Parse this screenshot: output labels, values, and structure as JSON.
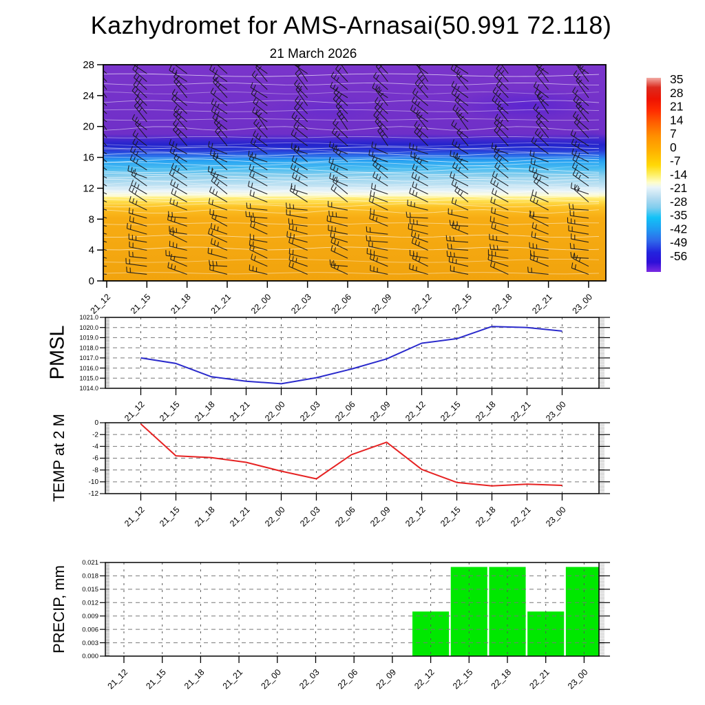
{
  "header": {
    "title": "Kazhydromet for AMS-Arnasai(50.991 72.118)",
    "date": "21 March 2026"
  },
  "times": [
    "21_12",
    "21_15",
    "21_18",
    "21_21",
    "22_00",
    "22_03",
    "22_06",
    "22_09",
    "22_12",
    "22_15",
    "22_18",
    "22_21",
    "23_00"
  ],
  "chart_data": [
    {
      "id": "upper_air",
      "type": "heatmap",
      "subtitle": "21 March 2026",
      "field": "temperature by model level (filled contours) with wind barbs",
      "x_categories": [
        "21_12",
        "21_15",
        "21_18",
        "21_21",
        "22_00",
        "22_03",
        "22_06",
        "22_09",
        "22_12",
        "22_15",
        "22_18",
        "22_21",
        "23_00"
      ],
      "ylim": [
        0,
        28
      ],
      "yticks": [
        0,
        4,
        8,
        12,
        16,
        20,
        24,
        28
      ],
      "bands_bottom_to_top": [
        {
          "levels": [
            0,
            10.7
          ],
          "color": "#F3A70F",
          "meaning": "approx 0 to +7 C"
        },
        {
          "levels": [
            10.7,
            11.4
          ],
          "color": "#FFE45C",
          "meaning": "approx -7 C"
        },
        {
          "levels": [
            11.4,
            12.2
          ],
          "color": "#F0F8F8",
          "meaning": "approx -14 C"
        },
        {
          "levels": [
            12.2,
            15.8
          ],
          "color": "#6EC8EF",
          "meaning": "approx -21 to -28 C"
        },
        {
          "levels": [
            15.8,
            16.8
          ],
          "color": "#2B6BE8",
          "meaning": "approx -35 to -42 C"
        },
        {
          "levels": [
            16.8,
            17.8
          ],
          "color": "#2323CC",
          "meaning": "approx -49 C"
        },
        {
          "levels": [
            17.8,
            28
          ],
          "color": "#7331C9",
          "meaning": "approx -56 C and below"
        }
      ],
      "gradient_stops": [
        [
          "0%",
          "#7A35CB"
        ],
        [
          "32%",
          "#6F2FC8"
        ],
        [
          "35%",
          "#3D28CF"
        ],
        [
          "37%",
          "#2323CC"
        ],
        [
          "39.5%",
          "#2737D6"
        ],
        [
          "42%",
          "#2B6BE8"
        ],
        [
          "44.5%",
          "#27A3F2"
        ],
        [
          "48%",
          "#49BCF1"
        ],
        [
          "51.5%",
          "#8FD0ED"
        ],
        [
          "56%",
          "#C3E3F3"
        ],
        [
          "58.5%",
          "#E9F4F8"
        ],
        [
          "60.5%",
          "#FDFBD2"
        ],
        [
          "61.5%",
          "#FFEF7E"
        ],
        [
          "63.5%",
          "#FFDA45"
        ],
        [
          "66%",
          "#FCC125"
        ],
        [
          "71%",
          "#F7AC13"
        ],
        [
          "100%",
          "#F1A30D"
        ]
      ],
      "overlay": {
        "wind_barb_columns": 13,
        "wind_barb_rows": 26,
        "barb_color": "#15151A",
        "contour_line_color": "#FFFFFF"
      },
      "colorbar": {
        "tick_labels": [
          "35",
          "28",
          "21",
          "14",
          "7",
          "0",
          "-7",
          "-14",
          "-21",
          "-28",
          "-35",
          "-42",
          "-49",
          "-56"
        ],
        "gradient_stops": [
          [
            "0%",
            "#F2ABA4"
          ],
          [
            "5%",
            "#DC2A1E"
          ],
          [
            "11%",
            "#EE1302"
          ],
          [
            "17%",
            "#FF2D00"
          ],
          [
            "23%",
            "#FF5E00"
          ],
          [
            "30%",
            "#FF8F00"
          ],
          [
            "38%",
            "#FFB300"
          ],
          [
            "45%",
            "#FFD806"
          ],
          [
            "50%",
            "#FEF068"
          ],
          [
            "54%",
            "#FEFDCC"
          ],
          [
            "56.5%",
            "#E8F4FA"
          ],
          [
            "62%",
            "#B3DBF0"
          ],
          [
            "67%",
            "#7ECDEE"
          ],
          [
            "72%",
            "#12C2F7"
          ],
          [
            "78%",
            "#1F9BF2"
          ],
          [
            "84%",
            "#2F68EA"
          ],
          [
            "90%",
            "#2323DE"
          ],
          [
            "95%",
            "#2D0FD8"
          ],
          [
            "100%",
            "#7B2BE2"
          ]
        ]
      }
    },
    {
      "id": "pmsl",
      "type": "line",
      "ylabel": "PMSL",
      "x": [
        "21_12",
        "21_15",
        "21_18",
        "21_21",
        "22_00",
        "22_03",
        "22_06",
        "22_09",
        "22_12",
        "22_15",
        "22_18",
        "22_21",
        "23_00"
      ],
      "values": [
        1017.0,
        1016.45,
        1015.15,
        1014.7,
        1014.45,
        1015.05,
        1015.9,
        1016.9,
        1018.45,
        1018.9,
        1020.1,
        1020.0,
        1019.65
      ],
      "ylim": [
        1014.0,
        1021.0
      ],
      "ytick_labels": [
        "1021.0",
        "1020.0",
        "1019.0",
        "1018.0",
        "1017.0",
        "1016.0",
        "1015.0",
        "1014.0"
      ],
      "line_color": "#2A2ACC",
      "grid": "dashed"
    },
    {
      "id": "temp_2m",
      "type": "line",
      "ylabel": "TEMP at 2 M",
      "x": [
        "21_12",
        "21_15",
        "21_18",
        "21_21",
        "22_00",
        "22_03",
        "22_06",
        "22_09",
        "22_12",
        "22_15",
        "22_18",
        "22_21",
        "23_00"
      ],
      "values": [
        -0.2,
        -5.6,
        -5.9,
        -6.7,
        -8.2,
        -9.5,
        -5.4,
        -3.3,
        -7.9,
        -10.1,
        -10.7,
        -10.4,
        -10.6
      ],
      "ylim": [
        -12,
        0
      ],
      "ytick_labels": [
        "0",
        "-2",
        "-4",
        "-6",
        "-8",
        "-10",
        "-12"
      ],
      "line_color": "#E62222",
      "grid": "dashed"
    },
    {
      "id": "precip",
      "type": "bar",
      "ylabel": "PRECIP, mm",
      "x": [
        "21_12",
        "21_15",
        "21_18",
        "21_21",
        "22_00",
        "22_03",
        "22_06",
        "22_09",
        "22_12",
        "22_15",
        "22_18",
        "22_21",
        "23_00"
      ],
      "values": [
        0,
        0,
        0,
        0,
        0,
        0,
        0,
        0,
        0.01,
        0.02,
        0.02,
        0.01,
        0.02
      ],
      "ylim": [
        0,
        0.021
      ],
      "ytick_labels": [
        "0.021",
        "0.018",
        "0.015",
        "0.012",
        "0.009",
        "0.006",
        "0.003",
        "0.000"
      ],
      "bar_color": "#00E800",
      "grid": "dashed"
    }
  ]
}
